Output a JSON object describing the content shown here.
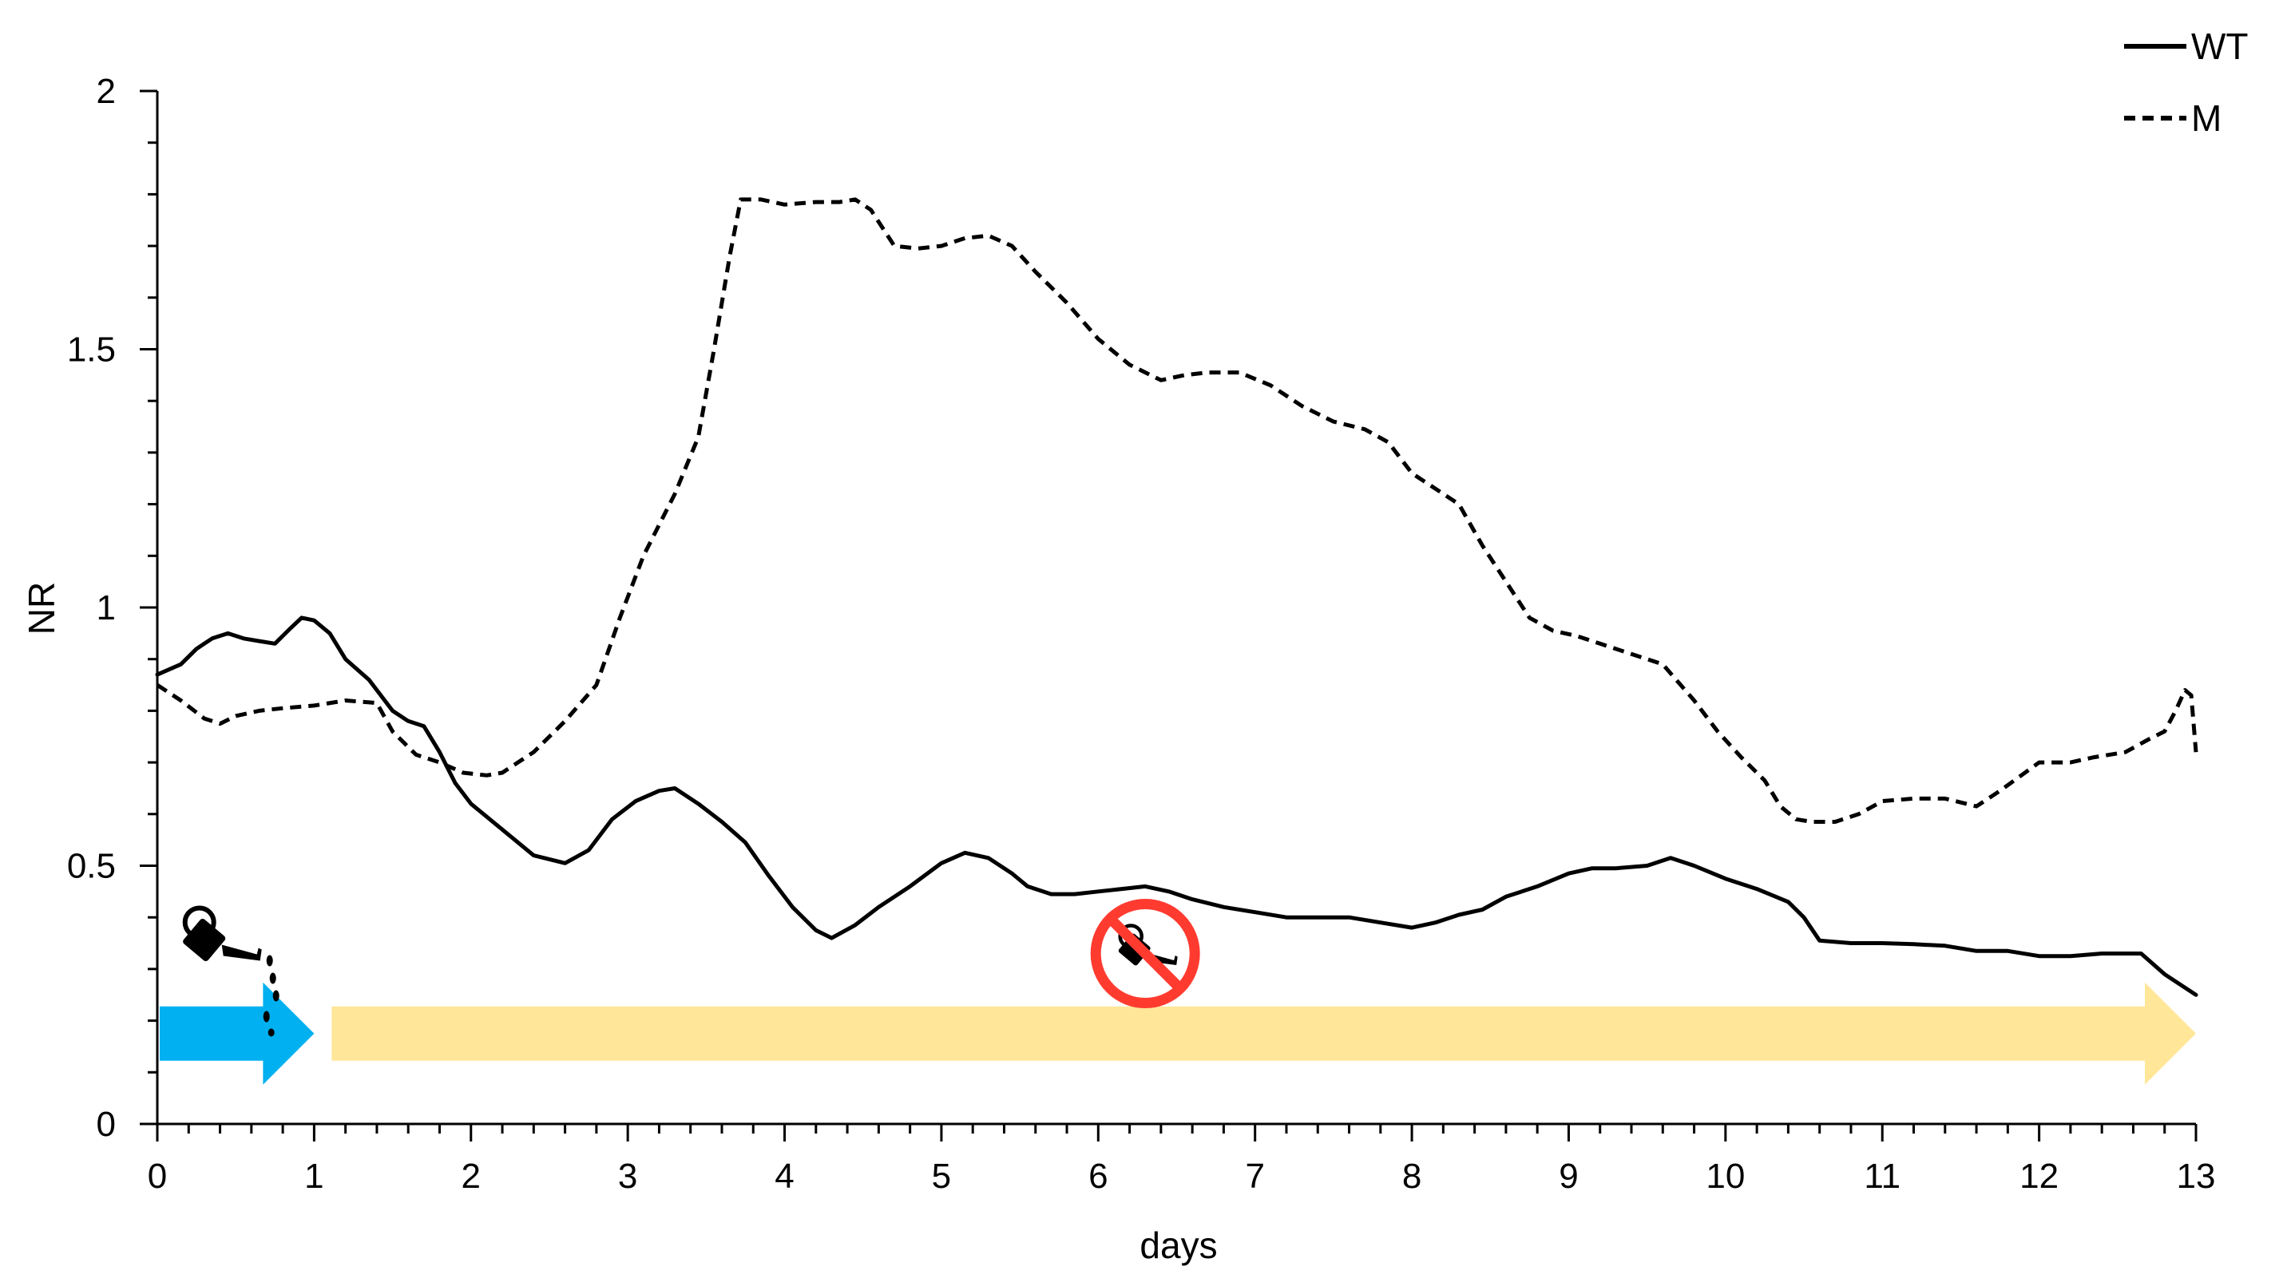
{
  "chart_data": {
    "type": "line",
    "title": "",
    "xlabel": "days",
    "ylabel": "NR",
    "xlim": [
      0,
      13
    ],
    "ylim": [
      0,
      2
    ],
    "x_ticks": [
      "0",
      "1",
      "2",
      "3",
      "4",
      "5",
      "6",
      "7",
      "8",
      "9",
      "10",
      "11",
      "12",
      "13"
    ],
    "y_ticks": [
      "0",
      "0.5",
      "1",
      "1.5",
      "2"
    ],
    "grid": false,
    "legend_position": "top-right",
    "series": [
      {
        "name": "WT",
        "style": "solid",
        "color": "#000000",
        "points": [
          [
            0,
            0.87
          ],
          [
            0.15,
            0.89
          ],
          [
            0.25,
            0.92
          ],
          [
            0.35,
            0.94
          ],
          [
            0.45,
            0.95
          ],
          [
            0.55,
            0.94
          ],
          [
            0.65,
            0.935
          ],
          [
            0.75,
            0.93
          ],
          [
            0.85,
            0.96
          ],
          [
            0.92,
            0.98
          ],
          [
            1.0,
            0.975
          ],
          [
            1.1,
            0.95
          ],
          [
            1.2,
            0.9
          ],
          [
            1.35,
            0.86
          ],
          [
            1.5,
            0.8
          ],
          [
            1.6,
            0.78
          ],
          [
            1.7,
            0.77
          ],
          [
            1.8,
            0.72
          ],
          [
            1.9,
            0.66
          ],
          [
            2.0,
            0.62
          ],
          [
            2.2,
            0.57
          ],
          [
            2.4,
            0.52
          ],
          [
            2.6,
            0.505
          ],
          [
            2.75,
            0.53
          ],
          [
            2.9,
            0.59
          ],
          [
            3.05,
            0.625
          ],
          [
            3.2,
            0.645
          ],
          [
            3.3,
            0.65
          ],
          [
            3.45,
            0.62
          ],
          [
            3.6,
            0.585
          ],
          [
            3.75,
            0.545
          ],
          [
            3.9,
            0.48
          ],
          [
            4.05,
            0.42
          ],
          [
            4.2,
            0.375
          ],
          [
            4.3,
            0.36
          ],
          [
            4.45,
            0.385
          ],
          [
            4.6,
            0.42
          ],
          [
            4.8,
            0.46
          ],
          [
            5.0,
            0.505
          ],
          [
            5.15,
            0.525
          ],
          [
            5.3,
            0.515
          ],
          [
            5.45,
            0.485
          ],
          [
            5.55,
            0.46
          ],
          [
            5.7,
            0.445
          ],
          [
            5.85,
            0.445
          ],
          [
            6.0,
            0.45
          ],
          [
            6.15,
            0.455
          ],
          [
            6.3,
            0.46
          ],
          [
            6.45,
            0.45
          ],
          [
            6.6,
            0.435
          ],
          [
            6.8,
            0.42
          ],
          [
            7.0,
            0.41
          ],
          [
            7.2,
            0.4
          ],
          [
            7.4,
            0.4
          ],
          [
            7.6,
            0.4
          ],
          [
            7.8,
            0.39
          ],
          [
            8.0,
            0.38
          ],
          [
            8.15,
            0.39
          ],
          [
            8.3,
            0.405
          ],
          [
            8.45,
            0.415
          ],
          [
            8.6,
            0.44
          ],
          [
            8.8,
            0.46
          ],
          [
            9.0,
            0.485
          ],
          [
            9.15,
            0.495
          ],
          [
            9.3,
            0.495
          ],
          [
            9.5,
            0.5
          ],
          [
            9.65,
            0.515
          ],
          [
            9.8,
            0.5
          ],
          [
            10.0,
            0.475
          ],
          [
            10.2,
            0.455
          ],
          [
            10.4,
            0.43
          ],
          [
            10.5,
            0.4
          ],
          [
            10.6,
            0.355
          ],
          [
            10.8,
            0.35
          ],
          [
            11.0,
            0.35
          ],
          [
            11.2,
            0.348
          ],
          [
            11.4,
            0.345
          ],
          [
            11.6,
            0.335
          ],
          [
            11.8,
            0.335
          ],
          [
            12.0,
            0.325
          ],
          [
            12.2,
            0.325
          ],
          [
            12.4,
            0.33
          ],
          [
            12.65,
            0.33
          ],
          [
            12.8,
            0.29
          ],
          [
            13.0,
            0.25
          ]
        ]
      },
      {
        "name": "M",
        "style": "dashed",
        "color": "#000000",
        "points": [
          [
            0,
            0.85
          ],
          [
            0.15,
            0.82
          ],
          [
            0.3,
            0.785
          ],
          [
            0.4,
            0.775
          ],
          [
            0.5,
            0.79
          ],
          [
            0.65,
            0.8
          ],
          [
            0.8,
            0.805
          ],
          [
            1.0,
            0.81
          ],
          [
            1.2,
            0.82
          ],
          [
            1.4,
            0.815
          ],
          [
            1.5,
            0.76
          ],
          [
            1.65,
            0.715
          ],
          [
            1.8,
            0.7
          ],
          [
            1.95,
            0.68
          ],
          [
            2.1,
            0.675
          ],
          [
            2.2,
            0.68
          ],
          [
            2.4,
            0.72
          ],
          [
            2.6,
            0.78
          ],
          [
            2.8,
            0.85
          ],
          [
            2.95,
            0.98
          ],
          [
            3.1,
            1.1
          ],
          [
            3.3,
            1.22
          ],
          [
            3.45,
            1.33
          ],
          [
            3.55,
            1.5
          ],
          [
            3.65,
            1.68
          ],
          [
            3.72,
            1.79
          ],
          [
            3.85,
            1.79
          ],
          [
            4.0,
            1.78
          ],
          [
            4.2,
            1.785
          ],
          [
            4.35,
            1.785
          ],
          [
            4.45,
            1.79
          ],
          [
            4.55,
            1.77
          ],
          [
            4.7,
            1.7
          ],
          [
            4.85,
            1.695
          ],
          [
            5.0,
            1.7
          ],
          [
            5.15,
            1.715
          ],
          [
            5.3,
            1.72
          ],
          [
            5.45,
            1.7
          ],
          [
            5.6,
            1.65
          ],
          [
            5.8,
            1.59
          ],
          [
            6.0,
            1.52
          ],
          [
            6.2,
            1.47
          ],
          [
            6.4,
            1.44
          ],
          [
            6.55,
            1.45
          ],
          [
            6.7,
            1.455
          ],
          [
            6.9,
            1.455
          ],
          [
            7.1,
            1.43
          ],
          [
            7.3,
            1.39
          ],
          [
            7.5,
            1.36
          ],
          [
            7.7,
            1.345
          ],
          [
            7.85,
            1.32
          ],
          [
            8.0,
            1.26
          ],
          [
            8.2,
            1.22
          ],
          [
            8.3,
            1.2
          ],
          [
            8.45,
            1.12
          ],
          [
            8.6,
            1.05
          ],
          [
            8.75,
            0.98
          ],
          [
            8.9,
            0.955
          ],
          [
            9.05,
            0.945
          ],
          [
            9.2,
            0.93
          ],
          [
            9.45,
            0.905
          ],
          [
            9.6,
            0.89
          ],
          [
            9.8,
            0.82
          ],
          [
            9.95,
            0.76
          ],
          [
            10.1,
            0.71
          ],
          [
            10.25,
            0.665
          ],
          [
            10.35,
            0.615
          ],
          [
            10.45,
            0.59
          ],
          [
            10.55,
            0.585
          ],
          [
            10.7,
            0.585
          ],
          [
            10.85,
            0.6
          ],
          [
            11.0,
            0.625
          ],
          [
            11.2,
            0.63
          ],
          [
            11.4,
            0.63
          ],
          [
            11.6,
            0.615
          ],
          [
            11.75,
            0.645
          ],
          [
            12.0,
            0.7
          ],
          [
            12.2,
            0.7
          ],
          [
            12.35,
            0.71
          ],
          [
            12.55,
            0.72
          ],
          [
            12.7,
            0.745
          ],
          [
            12.8,
            0.76
          ],
          [
            12.87,
            0.8
          ],
          [
            12.93,
            0.84
          ],
          [
            12.97,
            0.83
          ],
          [
            13.0,
            0.72
          ]
        ]
      }
    ],
    "annotations": [
      {
        "kind": "arrow",
        "color": "#00B0F0",
        "x_start": 0,
        "x_end": 1,
        "y": 0.175
      },
      {
        "kind": "arrow",
        "color": "#FFE699",
        "x_start": 1,
        "x_end": 13,
        "y": 0.175
      },
      {
        "icon": "watering-can-icon",
        "x": 0.35,
        "y": 0.35
      },
      {
        "icon": "no-watering-icon",
        "x": 6.3,
        "y": 0.33,
        "color": "#FF3B30"
      }
    ]
  }
}
